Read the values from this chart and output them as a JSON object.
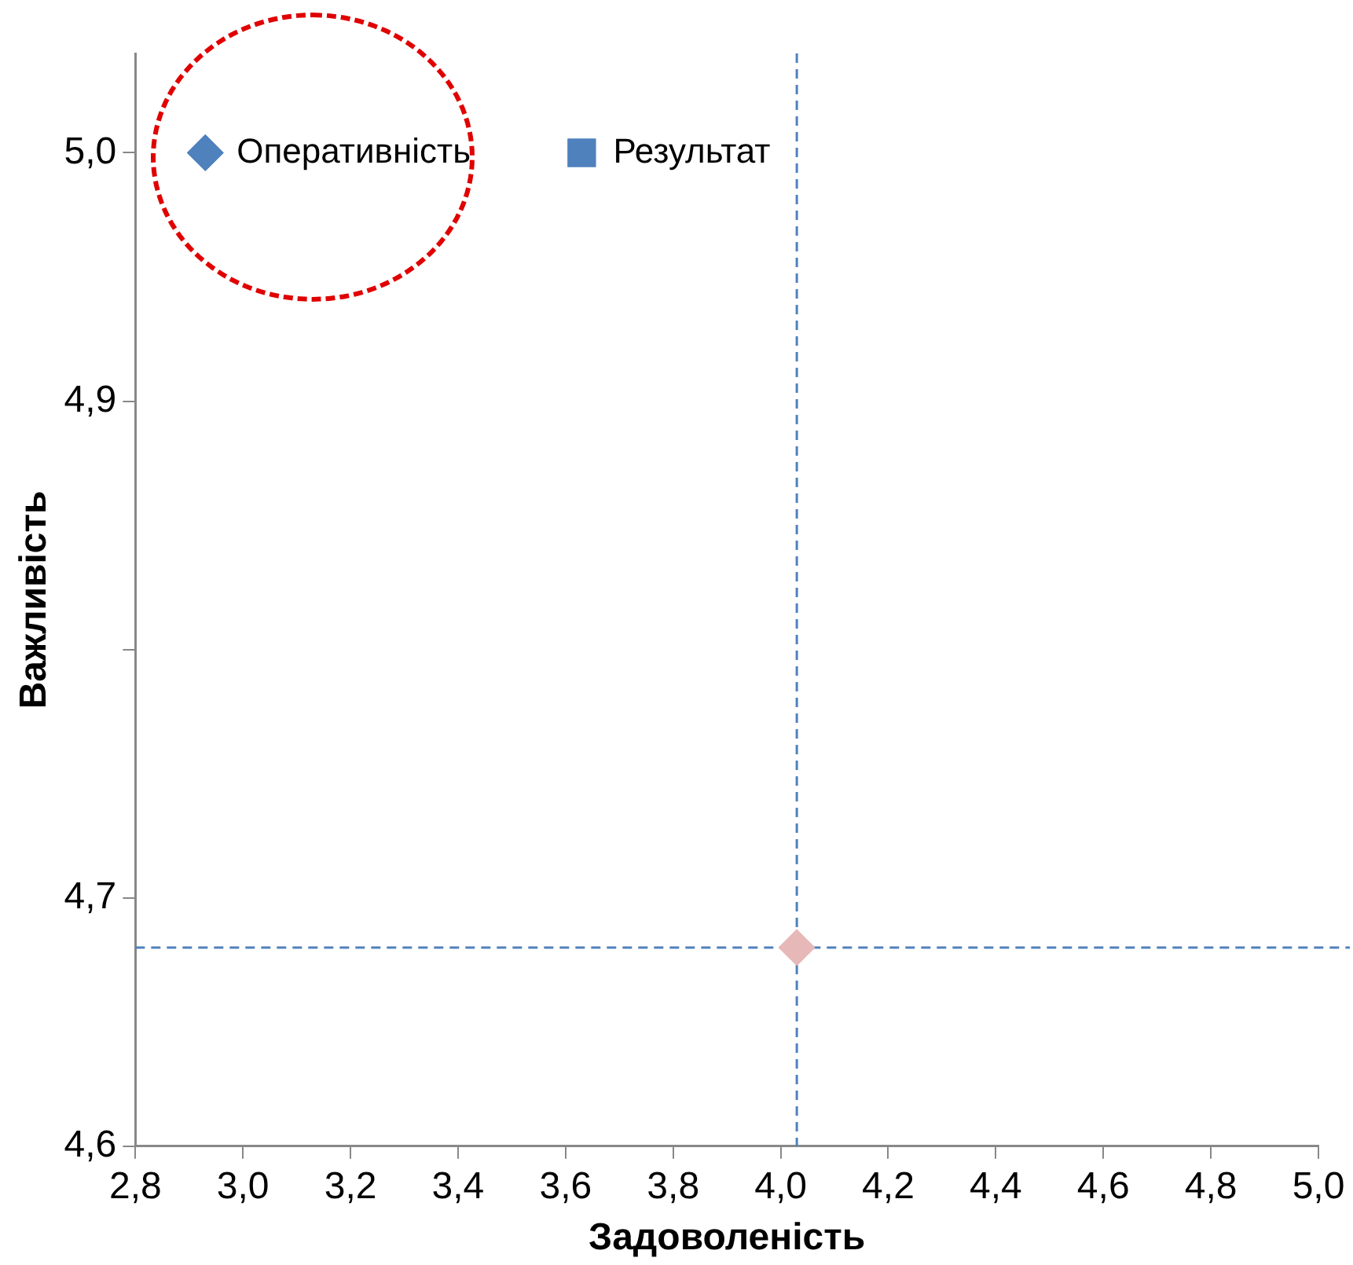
{
  "chart_data": {
    "type": "scatter",
    "xlabel": "Задоволеність",
    "ylabel": "Важливість",
    "xlim": [
      2.8,
      5.0
    ],
    "ylim": [
      4.6,
      5.04
    ],
    "xticks": [
      {
        "value": 2.8,
        "label": "2,8"
      },
      {
        "value": 3.0,
        "label": "3,0"
      },
      {
        "value": 3.2,
        "label": "3,2"
      },
      {
        "value": 3.4,
        "label": "3,4"
      },
      {
        "value": 3.6,
        "label": "3,6"
      },
      {
        "value": 3.8,
        "label": "3,8"
      },
      {
        "value": 4.0,
        "label": "4,0"
      },
      {
        "value": 4.2,
        "label": "4,2"
      },
      {
        "value": 4.4,
        "label": "4,4"
      },
      {
        "value": 4.6,
        "label": "4,6"
      },
      {
        "value": 4.8,
        "label": "4,8"
      },
      {
        "value": 5.0,
        "label": "5,0"
      }
    ],
    "yticks": [
      {
        "value": 4.6,
        "label": "4,6"
      },
      {
        "value": 4.7,
        "label": "4,7"
      },
      {
        "value": 4.8,
        "label": null
      },
      {
        "value": 4.9,
        "label": "4,9"
      },
      {
        "value": 5.0,
        "label": "5,0"
      }
    ],
    "series": [
      {
        "name": "Оперативність",
        "color": "#4f81bd",
        "marker": "diamond",
        "x": [
          2.93
        ],
        "values": [
          5.0
        ]
      },
      {
        "name": "Результат",
        "color": "#4f81bd",
        "marker": "square",
        "x": [
          3.63
        ],
        "values": [
          5.0
        ]
      },
      {
        "color": "#e6b9b8",
        "marker": "diamond",
        "x": [
          4.03
        ],
        "values": [
          4.68
        ]
      }
    ],
    "ref_lines": [
      {
        "axis": "x",
        "value": 4.03,
        "color": "#4f81bd",
        "line_style": "dashed"
      },
      {
        "axis": "y",
        "value": 4.68,
        "color": "#4f81bd",
        "line_style": "dashed"
      }
    ],
    "grid": false,
    "legend": false
  }
}
